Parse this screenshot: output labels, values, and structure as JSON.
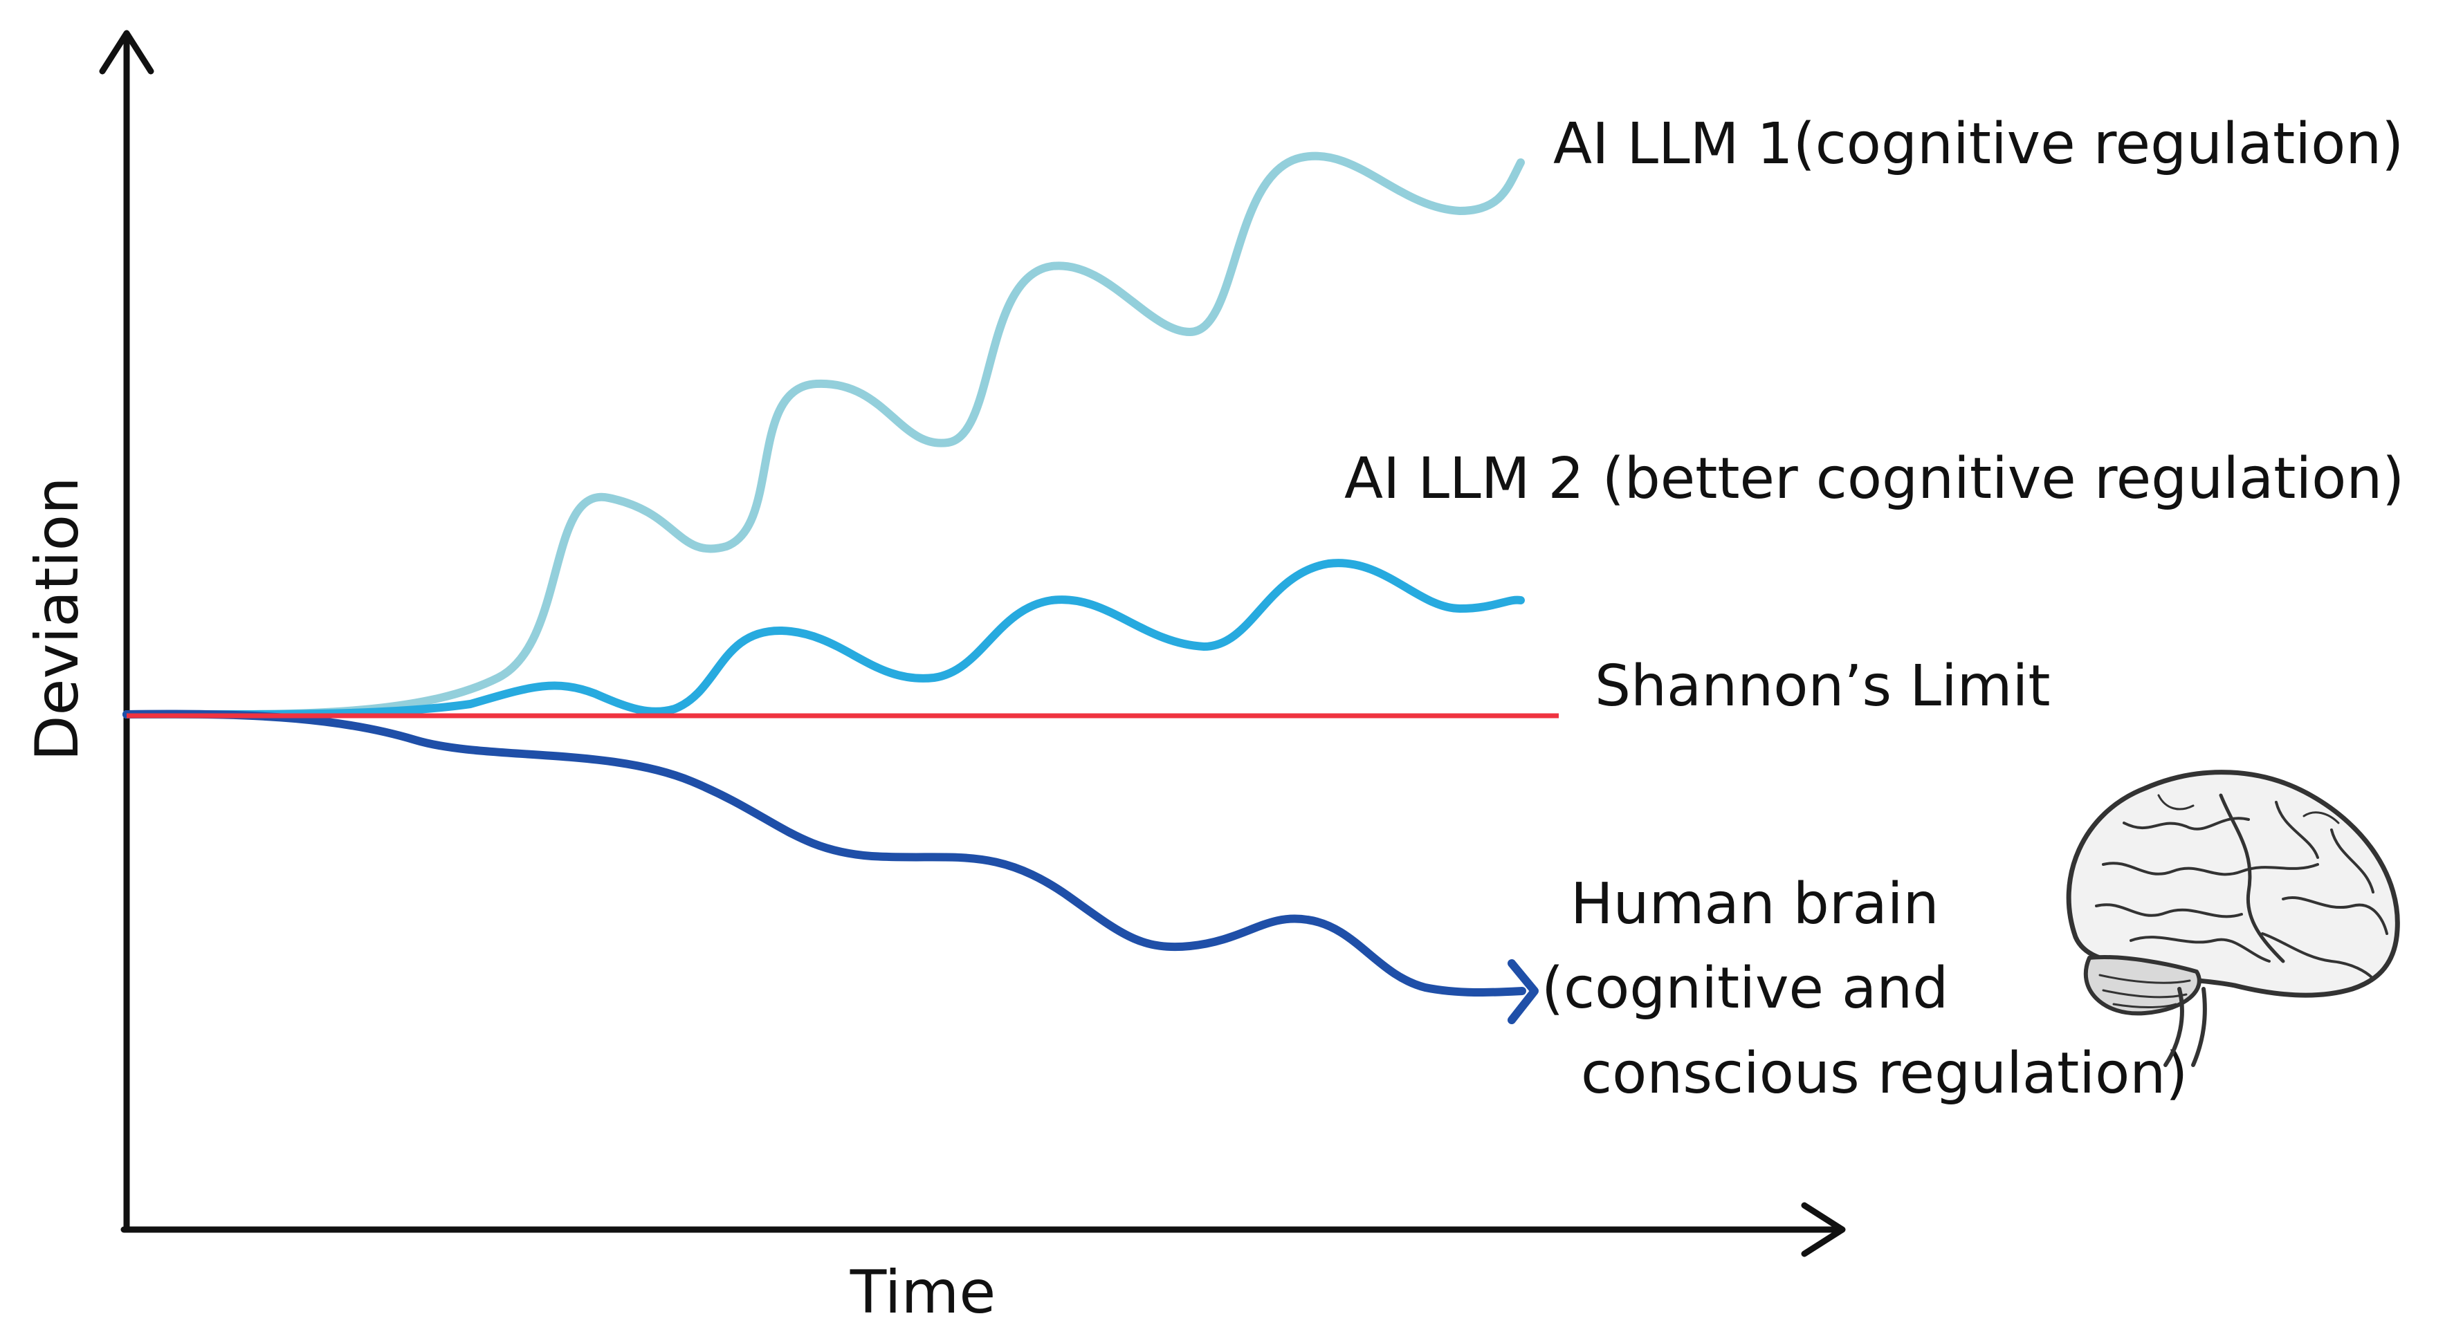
{
  "axes": {
    "x_label": "Time",
    "y_label": "Deviation"
  },
  "series": [
    {
      "id": "llm1",
      "label": "AI LLM 1(cognitive regulation)",
      "color": "#93cfdb",
      "trend": "strongly rising with large oscillations"
    },
    {
      "id": "llm2",
      "label": "AI LLM 2 (better cognitive regulation)",
      "color": "#27aadf",
      "trend": "slightly rising with small oscillations"
    },
    {
      "id": "limit",
      "label": "Shannon’s Limit",
      "color": "#ef3340",
      "trend": "constant horizontal reference"
    },
    {
      "id": "human",
      "label_lines": [
        "Human brain",
        "(cognitive and",
        "conscious regulation)"
      ],
      "color": "#1f4fa8",
      "trend": "declining below the limit"
    }
  ],
  "icons": {
    "brain": "brain-icon"
  }
}
